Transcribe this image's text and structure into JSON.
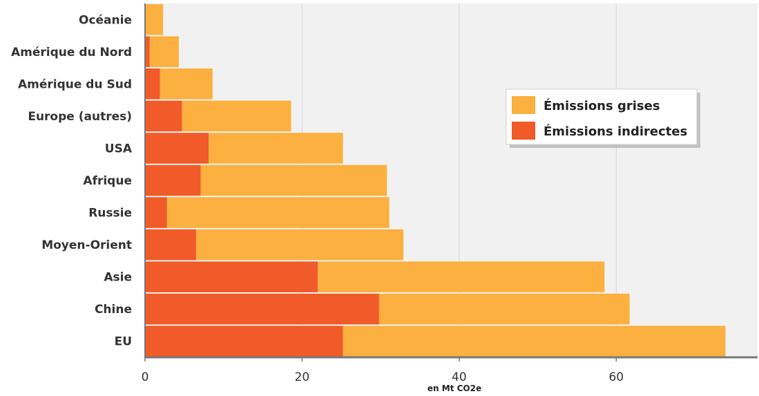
{
  "chart_data": {
    "type": "bar",
    "orientation": "horizontal",
    "stacked": true,
    "categories": [
      "EU",
      "Chine",
      "Asie",
      "Moyen-Orient",
      "Russie",
      "Afrique",
      "USA",
      "Europe (autres)",
      "Amérique du Sud",
      "Amérique du Nord",
      "Océanie"
    ],
    "series": [
      {
        "name": "Émissions indirectes",
        "color": "#f15a29",
        "values": [
          25.2,
          29.8,
          22.0,
          6.5,
          2.8,
          7.1,
          8.1,
          4.7,
          1.9,
          0.6,
          0
        ]
      },
      {
        "name": "Émissions grises",
        "color": "#fbb040",
        "values": [
          48.7,
          31.9,
          36.5,
          26.4,
          28.3,
          23.7,
          17.1,
          13.9,
          6.7,
          3.7,
          2.3
        ]
      }
    ],
    "xlabel": "en Mt CO2e",
    "ylabel": "",
    "xlim": [
      0,
      78
    ],
    "xticks": [
      0,
      20,
      40,
      60
    ],
    "grid": true,
    "legend_position": "right"
  }
}
